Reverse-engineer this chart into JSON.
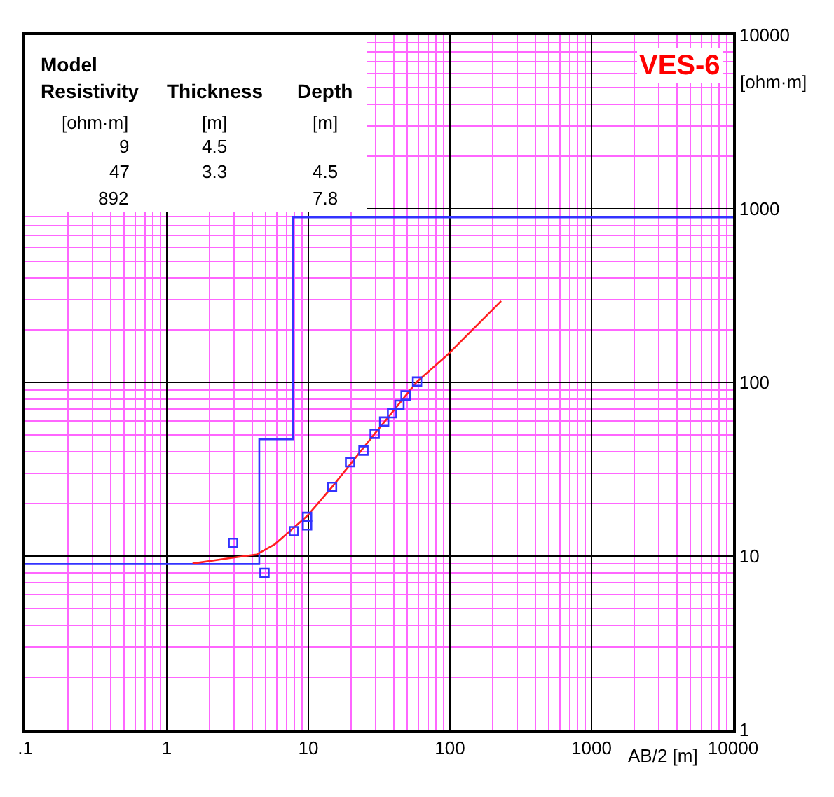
{
  "chart_data": {
    "type": "line",
    "title": "VES-6",
    "xlabel": "AB/2 [m]",
    "ylabel": "[ohm·m]",
    "log": "xy",
    "grid": true,
    "marker": "square",
    "xlim": [
      0.1,
      10000
    ],
    "xticks": [
      {
        "value": 0.1,
        "label": ".1"
      },
      {
        "value": 0.2,
        "label": null
      },
      {
        "value": 0.3,
        "label": null
      },
      {
        "value": 0.4,
        "label": null
      },
      {
        "value": 0.5,
        "label": null
      },
      {
        "value": 0.6,
        "label": null
      },
      {
        "value": 0.7,
        "label": null
      },
      {
        "value": 0.8,
        "label": null
      },
      {
        "value": 0.9,
        "label": null
      },
      1,
      {
        "value": 2,
        "label": null
      },
      {
        "value": 3,
        "label": null
      },
      {
        "value": 4,
        "label": null
      },
      {
        "value": 5,
        "label": null
      },
      {
        "value": 6,
        "label": null
      },
      {
        "value": 7,
        "label": null
      },
      {
        "value": 8,
        "label": null
      },
      {
        "value": 9,
        "label": null
      },
      10,
      {
        "value": 20,
        "label": null
      },
      {
        "value": 30,
        "label": null
      },
      {
        "value": 40,
        "label": null
      },
      {
        "value": 50,
        "label": null
      },
      {
        "value": 60,
        "label": null
      },
      {
        "value": 70,
        "label": null
      },
      {
        "value": 80,
        "label": null
      },
      {
        "value": 90,
        "label": null
      },
      100,
      {
        "value": 200,
        "label": null
      },
      {
        "value": 300,
        "label": null
      },
      {
        "value": 400,
        "label": null
      },
      {
        "value": 500,
        "label": null
      },
      {
        "value": 600,
        "label": null
      },
      {
        "value": 700,
        "label": null
      },
      {
        "value": 800,
        "label": null
      },
      {
        "value": 900,
        "label": null
      },
      1000,
      {
        "value": 2000,
        "label": null
      },
      {
        "value": 3000,
        "label": null
      },
      {
        "value": 4000,
        "label": null
      },
      {
        "value": 5000,
        "label": null
      },
      {
        "value": 6000,
        "label": null
      },
      {
        "value": 7000,
        "label": null
      },
      {
        "value": 8000,
        "label": null
      },
      {
        "value": 9000,
        "label": null
      },
      10000
    ],
    "ylim": [
      1,
      10000
    ],
    "yticks": [
      1,
      {
        "value": 2,
        "label": null
      },
      {
        "value": 3,
        "label": null
      },
      {
        "value": 4,
        "label": null
      },
      {
        "value": 5,
        "label": null
      },
      {
        "value": 6,
        "label": null
      },
      {
        "value": 7,
        "label": null
      },
      {
        "value": 8,
        "label": null
      },
      {
        "value": 9,
        "label": null
      },
      10,
      {
        "value": 20,
        "label": null
      },
      {
        "value": 30,
        "label": null
      },
      {
        "value": 40,
        "label": null
      },
      {
        "value": 50,
        "label": null
      },
      {
        "value": 60,
        "label": null
      },
      {
        "value": 70,
        "label": null
      },
      {
        "value": 80,
        "label": null
      },
      {
        "value": 90,
        "label": null
      },
      100,
      {
        "value": 200,
        "label": null
      },
      {
        "value": 300,
        "label": null
      },
      {
        "value": 400,
        "label": null
      },
      {
        "value": 500,
        "label": null
      },
      {
        "value": 600,
        "label": null
      },
      {
        "value": 700,
        "label": null
      },
      {
        "value": 800,
        "label": null
      },
      {
        "value": 900,
        "label": null
      },
      1000,
      {
        "value": 2000,
        "label": null
      },
      {
        "value": 3000,
        "label": null
      },
      {
        "value": 4000,
        "label": null
      },
      {
        "value": 5000,
        "label": null
      },
      {
        "value": 6000,
        "label": null
      },
      {
        "value": 7000,
        "label": null
      },
      {
        "value": 8000,
        "label": null
      },
      {
        "value": 9000,
        "label": null
      },
      10000
    ],
    "annotations": [
      "Model",
      "Resistivity",
      "Thickness",
      "Depth",
      "[ohm·m]",
      "[m]",
      "[m]",
      "9",
      "4.5",
      "47",
      "3.3",
      "4.5",
      "892",
      "7.8"
    ],
    "series": [
      {
        "type": "line",
        "marker": "none",
        "color": "#3333ff",
        "x": [
          0.1,
          4.5,
          4.5,
          7.8,
          7.8,
          10000
        ],
        "values": [
          9,
          9,
          47,
          47,
          892,
          892
        ]
      },
      {
        "marker": "none",
        "color": "#ff2020",
        "x": [
          1.52,
          2.94,
          4.3,
          5.8,
          9.8,
          14.7,
          29.4,
          58.6,
          96,
          230
        ],
        "values": [
          9.06,
          9.8,
          10.2,
          11.7,
          17,
          25,
          50.6,
          101,
          144,
          294
        ]
      },
      {
        "type": "scatter",
        "color": "#3333ff",
        "x": [
          2.94,
          4.9,
          7.9,
          9.8,
          9.8,
          14.7,
          19.7,
          24.5,
          29.4,
          34.3,
          39,
          44,
          48.6,
          58.6
        ],
        "values": [
          11.9,
          8,
          13.9,
          15,
          16.8,
          25,
          34.7,
          40.5,
          50.6,
          59.5,
          66.5,
          74.3,
          84.1,
          101
        ]
      }
    ]
  }
}
